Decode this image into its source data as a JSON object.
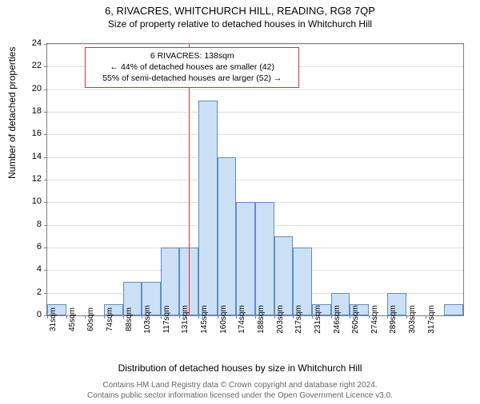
{
  "title_main": "6, RIVACRES, WHITCHURCH HILL, READING, RG8 7QP",
  "title_sub": "Size of property relative to detached houses in Whitchurch Hill",
  "y_axis_label": "Number of detached properties",
  "x_axis_label": "Distribution of detached houses by size in Whitchurch Hill",
  "footer_line1": "Contains HM Land Registry data © Crown copyright and database right 2024.",
  "footer_line2": "Contains public sector information licensed under the Open Government Licence v3.0.",
  "chart": {
    "type": "histogram",
    "ylim": [
      0,
      24
    ],
    "ytick_step": 2,
    "y_ticks": [
      0,
      2,
      4,
      6,
      8,
      10,
      12,
      14,
      16,
      18,
      20,
      22,
      24
    ],
    "x_ticks": [
      "31sqm",
      "45sqm",
      "60sqm",
      "74sqm",
      "88sqm",
      "103sqm",
      "117sqm",
      "131sqm",
      "145sqm",
      "160sqm",
      "174sqm",
      "188sqm",
      "203sqm",
      "217sqm",
      "231sqm",
      "246sqm",
      "260sqm",
      "274sqm",
      "289sqm",
      "303sqm",
      "317sqm"
    ],
    "bar_values": [
      1,
      0,
      0,
      1,
      3,
      3,
      6,
      6,
      19,
      14,
      10,
      10,
      7,
      6,
      1,
      2,
      1,
      0,
      2,
      0,
      0,
      1
    ],
    "bar_fill": "#cce0f5",
    "bar_stroke": "#5a8fc7",
    "grid_color": "#c0c0c0",
    "axis_color": "#808080",
    "background_color": "#ffffff",
    "label_fontsize": 12,
    "tick_fontsize": 11,
    "ref_line_value": 138,
    "ref_line_color": "#cc3333",
    "annotation": {
      "line1": "6 RIVACRES: 138sqm",
      "line2": "← 44% of detached houses are smaller (42)",
      "line3": "55% of semi-detached houses are larger (52) →",
      "border_color": "#cc3333"
    }
  }
}
